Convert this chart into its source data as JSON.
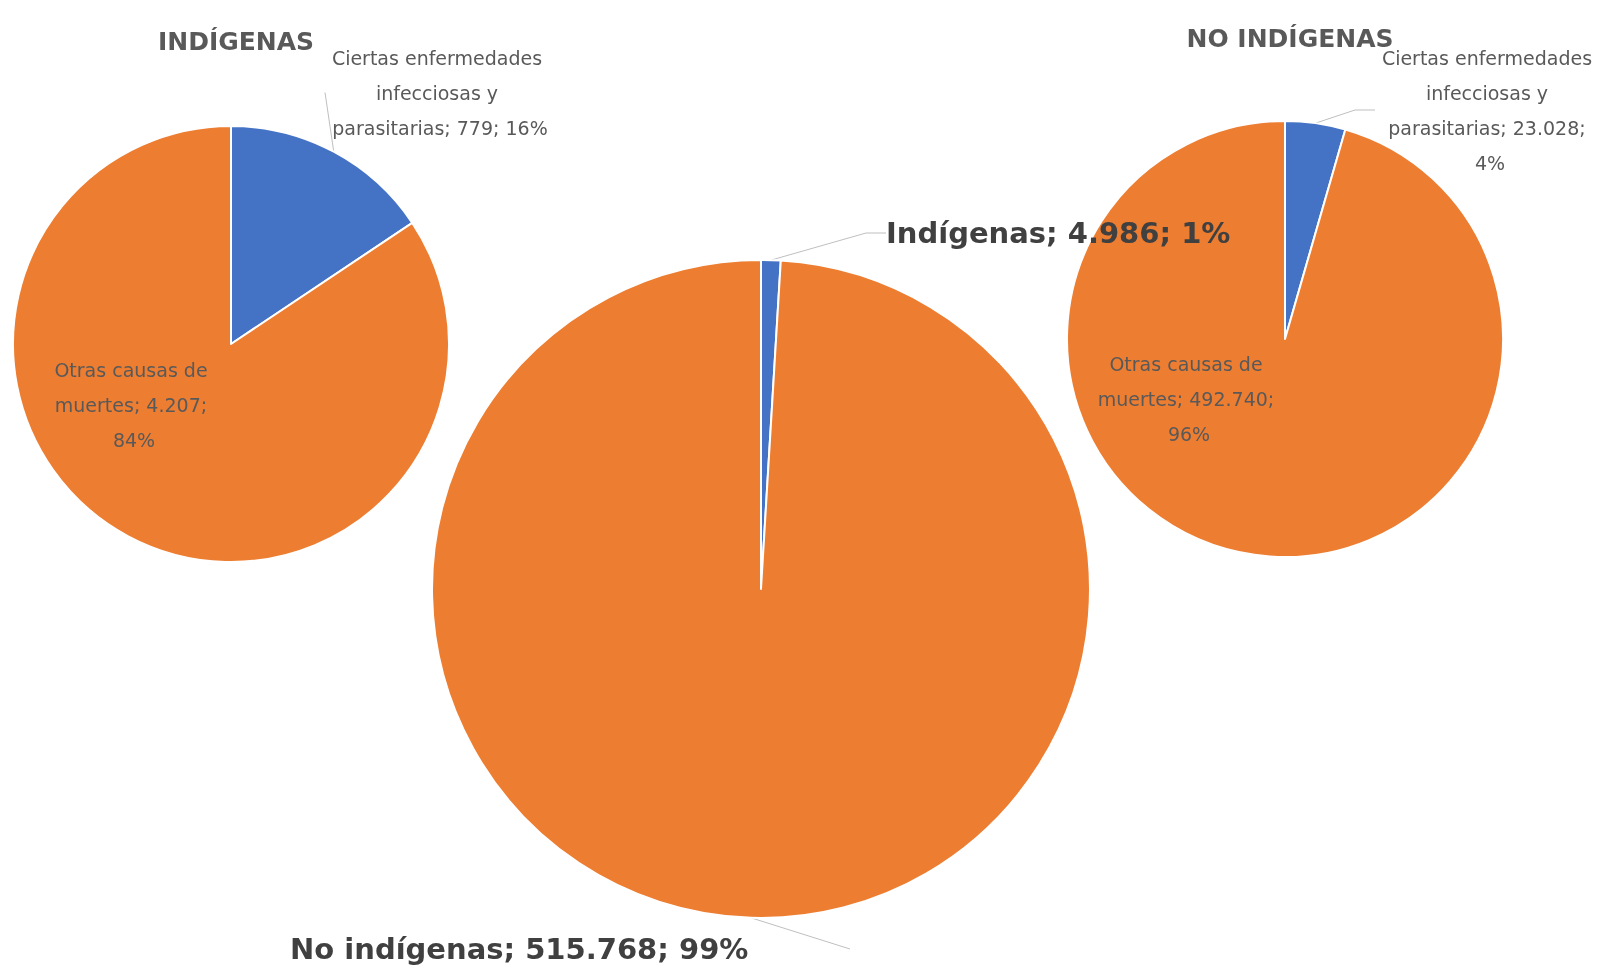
{
  "chart_data": [
    {
      "type": "pie",
      "title": "INDÍGENAS",
      "categories": [
        "Ciertas enfermedades infecciosas y parasitarias",
        "Otras causas de muertes"
      ],
      "values": [
        779,
        4207
      ],
      "colors": [
        "#4472c4",
        "#ed7d31"
      ],
      "value_labels": [
        "779; 16%",
        "4.207; 84%"
      ]
    },
    {
      "type": "pie",
      "categories": [
        "Indígenas",
        "No indígenas"
      ],
      "values": [
        4986,
        515768
      ],
      "colors": [
        "#4472c4",
        "#ed7d31"
      ],
      "value_labels": [
        "4.986; 1%",
        "515.768; 99%"
      ]
    },
    {
      "type": "pie",
      "title": "NO INDÍGENAS",
      "categories": [
        "Ciertas enfermedades infecciosas y parasitarias",
        "Otras causas de muertes"
      ],
      "values": [
        23028,
        492740
      ],
      "colors": [
        "#4472c4",
        "#ed7d31"
      ],
      "value_labels": [
        "23.028; 4%",
        "492.740; 96%"
      ]
    }
  ]
}
